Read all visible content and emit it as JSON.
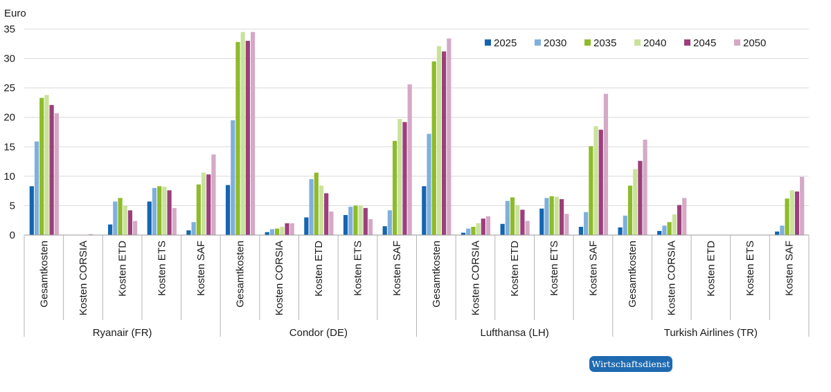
{
  "chart_data": {
    "type": "bar",
    "y_unit_label": "Euro",
    "ylim": [
      0,
      35
    ],
    "y_ticks": [
      0,
      5,
      10,
      15,
      20,
      25,
      30,
      35
    ],
    "grid": true,
    "legend_position": "top-right",
    "groups": [
      {
        "name": "Ryanair (FR)",
        "categories": [
          "Gesamtkosten",
          "Kosten CORSIA",
          "Kosten ETD",
          "Kosten ETS",
          "Kosten SAF"
        ]
      },
      {
        "name": "Condor (DE)",
        "categories": [
          "Gesamtkosten",
          "Kosten CORSIA",
          "Kosten ETD",
          "Kosten ETS",
          "Kosten SAF"
        ]
      },
      {
        "name": "Lufthansa (LH)",
        "categories": [
          "Gesamtkosten",
          "Kosten CORSIA",
          "Kosten ETD",
          "Kosten ETS",
          "Kosten SAF"
        ]
      },
      {
        "name": "Turkish Airlines (TR)",
        "categories": [
          "Gesamtkosten",
          "Kosten CORSIA",
          "Kosten ETD",
          "Kosten ETS",
          "Kosten SAF"
        ]
      }
    ],
    "series": [
      {
        "name": "2025",
        "color": "#1565b0",
        "values": [
          8.3,
          0,
          1.8,
          5.7,
          0.8,
          8.5,
          0.5,
          3.0,
          3.4,
          1.5,
          8.3,
          0.4,
          1.9,
          4.5,
          1.4,
          1.3,
          0.7,
          0,
          0,
          0.6
        ]
      },
      {
        "name": "2030",
        "color": "#7fb0dc",
        "values": [
          15.9,
          0,
          5.7,
          8.0,
          2.2,
          19.5,
          1.0,
          9.5,
          4.8,
          4.2,
          17.2,
          1.1,
          5.8,
          6.3,
          3.9,
          3.3,
          1.6,
          0,
          0,
          1.6
        ]
      },
      {
        "name": "2035",
        "color": "#8dbb2a",
        "values": [
          23.3,
          0,
          6.3,
          8.3,
          8.6,
          32.8,
          1.1,
          10.6,
          5.0,
          16.0,
          29.5,
          1.4,
          6.4,
          6.6,
          15.1,
          8.4,
          2.2,
          0,
          0,
          6.2
        ]
      },
      {
        "name": "2040",
        "color": "#c9e29a",
        "values": [
          23.8,
          0,
          5.0,
          8.2,
          10.6,
          34.5,
          1.4,
          8.4,
          5.0,
          19.7,
          32.1,
          2.0,
          5.1,
          6.5,
          18.5,
          11.2,
          3.5,
          0,
          0,
          7.6
        ]
      },
      {
        "name": "2045",
        "color": "#9c3f7c",
        "values": [
          22.1,
          0.1,
          4.2,
          7.6,
          10.3,
          33.0,
          2.0,
          7.1,
          4.6,
          19.2,
          31.2,
          2.8,
          4.3,
          6.1,
          17.9,
          12.6,
          5.1,
          0,
          0,
          7.4
        ]
      },
      {
        "name": "2050",
        "color": "#d5a9c6",
        "values": [
          20.7,
          0,
          2.4,
          4.6,
          13.7,
          34.5,
          2.0,
          4.0,
          2.7,
          25.6,
          33.4,
          3.2,
          2.4,
          3.6,
          24.0,
          16.2,
          6.3,
          0,
          0,
          9.9
        ]
      }
    ]
  },
  "brand": {
    "label": "Wirtschaftsdienst"
  }
}
